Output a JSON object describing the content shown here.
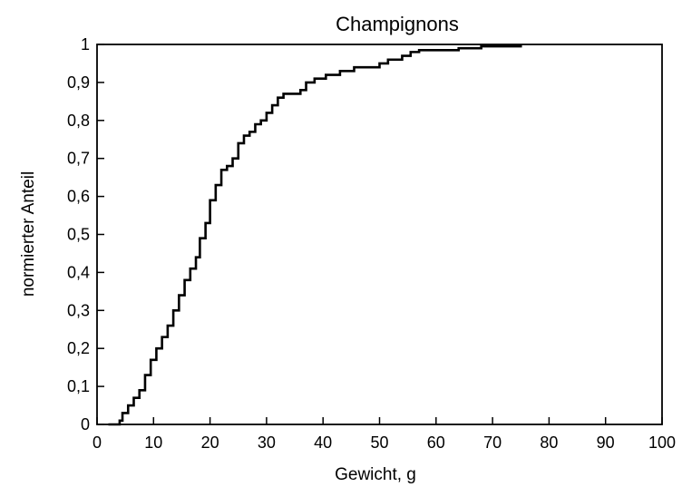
{
  "chart_data": {
    "type": "line",
    "step": true,
    "title": "Champignons",
    "xlabel": "Gewicht, g",
    "ylabel": "normierter Anteil",
    "xlim": [
      0,
      100
    ],
    "ylim": [
      0,
      1
    ],
    "xticks": [
      0,
      10,
      20,
      30,
      40,
      50,
      60,
      70,
      80,
      90,
      100
    ],
    "xtick_labels": [
      "0",
      "10",
      "20",
      "30",
      "40",
      "50",
      "60",
      "70",
      "80",
      "90",
      "100"
    ],
    "yticks": [
      0,
      0.1,
      0.2,
      0.3,
      0.4,
      0.5,
      0.6,
      0.7,
      0.8,
      0.9,
      1
    ],
    "ytick_labels": [
      "0",
      "0,1",
      "0,2",
      "0,3",
      "0,4",
      "0,5",
      "0,6",
      "0,7",
      "0,8",
      "0,9",
      "1"
    ],
    "grid": false,
    "legend": false,
    "series": [
      {
        "color": "#000000",
        "points": [
          [
            2,
            0
          ],
          [
            4,
            0.01
          ],
          [
            4.5,
            0.03
          ],
          [
            5.5,
            0.05
          ],
          [
            6.5,
            0.07
          ],
          [
            7.5,
            0.09
          ],
          [
            8.5,
            0.13
          ],
          [
            9.5,
            0.17
          ],
          [
            10.5,
            0.2
          ],
          [
            11.5,
            0.23
          ],
          [
            12.5,
            0.26
          ],
          [
            13.5,
            0.3
          ],
          [
            14.5,
            0.34
          ],
          [
            15.5,
            0.38
          ],
          [
            16.5,
            0.41
          ],
          [
            17.5,
            0.44
          ],
          [
            18.2,
            0.49
          ],
          [
            19.2,
            0.53
          ],
          [
            20,
            0.59
          ],
          [
            21,
            0.63
          ],
          [
            22,
            0.67
          ],
          [
            23,
            0.68
          ],
          [
            24,
            0.7
          ],
          [
            25,
            0.74
          ],
          [
            26,
            0.76
          ],
          [
            27,
            0.77
          ],
          [
            28,
            0.79
          ],
          [
            29,
            0.8
          ],
          [
            30,
            0.82
          ],
          [
            31,
            0.84
          ],
          [
            32,
            0.86
          ],
          [
            33,
            0.87
          ],
          [
            36,
            0.88
          ],
          [
            37,
            0.9
          ],
          [
            38.5,
            0.91
          ],
          [
            40.5,
            0.92
          ],
          [
            43,
            0.93
          ],
          [
            45.5,
            0.94
          ],
          [
            50,
            0.95
          ],
          [
            51.5,
            0.96
          ],
          [
            54,
            0.97
          ],
          [
            55.5,
            0.98
          ],
          [
            57,
            0.985
          ],
          [
            64,
            0.99
          ],
          [
            68,
            0.995
          ],
          [
            75,
            1
          ]
        ]
      }
    ]
  }
}
